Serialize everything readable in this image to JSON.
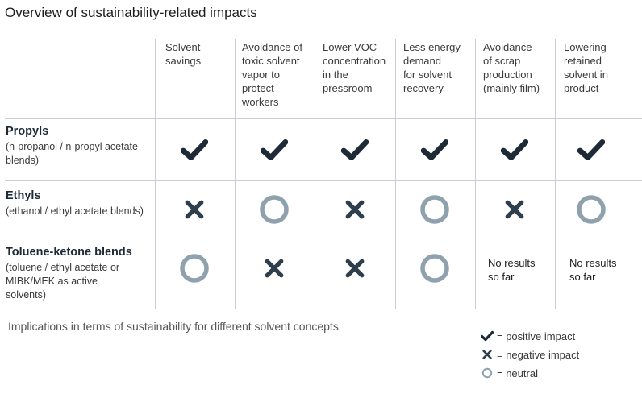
{
  "title": "Overview of sustainability-related impacts",
  "columns": [
    "Solvent\nsavings",
    "Avoidance of\ntoxic solvent\nvapor to\nprotect\nworkers",
    "Lower VOC\nconcentration\nin the\npressroom",
    "Less energy\ndemand\nfor solvent\nrecovery",
    "Avoidance\nof  scrap\nproduction\n(mainly film)",
    "Lowering\nretained\nsolvent in\nproduct"
  ],
  "rows": [
    {
      "name": "Propyls",
      "sub": "(n-propanol / n-propyl acetate\nblends)",
      "cells": [
        "positive",
        "positive",
        "positive",
        "positive",
        "positive",
        "positive"
      ]
    },
    {
      "name": "Ethyls",
      "sub": "(ethanol / ethyl acetate blends)",
      "cells": [
        "negative",
        "neutral",
        "negative",
        "neutral",
        "negative",
        "neutral"
      ]
    },
    {
      "name": "Toluene-ketone blends",
      "sub": "(toluene / ethyl acetate or\nMIBK/MEK as active\nsolvents)",
      "cells": [
        "neutral",
        "negative",
        "negative",
        "neutral",
        "No results\nso far",
        "No results\nso far"
      ]
    }
  ],
  "caption": "Implications in terms of sustainability for different solvent concepts",
  "legend": [
    {
      "icon": "positive",
      "label": "= positive impact"
    },
    {
      "icon": "negative",
      "label": "= negative impact"
    },
    {
      "icon": "neutral",
      "label": "= neutral"
    }
  ],
  "colors": {
    "check": "#1e2b36",
    "cross": "#2d3e4c",
    "circle": "#8ea1ad",
    "grid": "#c9ced3"
  }
}
